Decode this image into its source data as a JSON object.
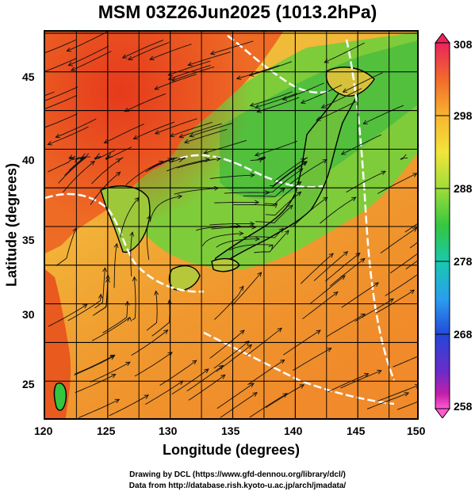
{
  "title": "MSM 03Z26Jun2025 (1013.2hPa)",
  "axes": {
    "xlabel": "Longitude (degrees)",
    "ylabel": "Latitude  (degrees)",
    "xticks": [
      "120",
      "125",
      "130",
      "135",
      "140",
      "145",
      "150"
    ],
    "yticks": [
      "45",
      "40",
      "35",
      "30",
      "25"
    ],
    "xlim": [
      120,
      150
    ],
    "ylim": [
      22.4,
      47.6
    ]
  },
  "colorbar": {
    "labels": [
      "308",
      "298",
      "288",
      "278",
      "268",
      "258"
    ],
    "range": [
      258,
      308
    ],
    "colors": [
      "#e8245b",
      "#f26a2b",
      "#f8b531",
      "#f2e53a",
      "#9ddc3a",
      "#35c640",
      "#18c8b0",
      "#2a9ef0",
      "#2446d8",
      "#6d2bc8",
      "#c31fa8",
      "#ff5ad0"
    ]
  },
  "credits": {
    "line1": "Drawing by DCL (https://www.gfd-dennou.org/library/dcl/)",
    "line2": "Data from http://database.rish.kyoto-u.ac.jp/arch/jmadata/"
  }
}
